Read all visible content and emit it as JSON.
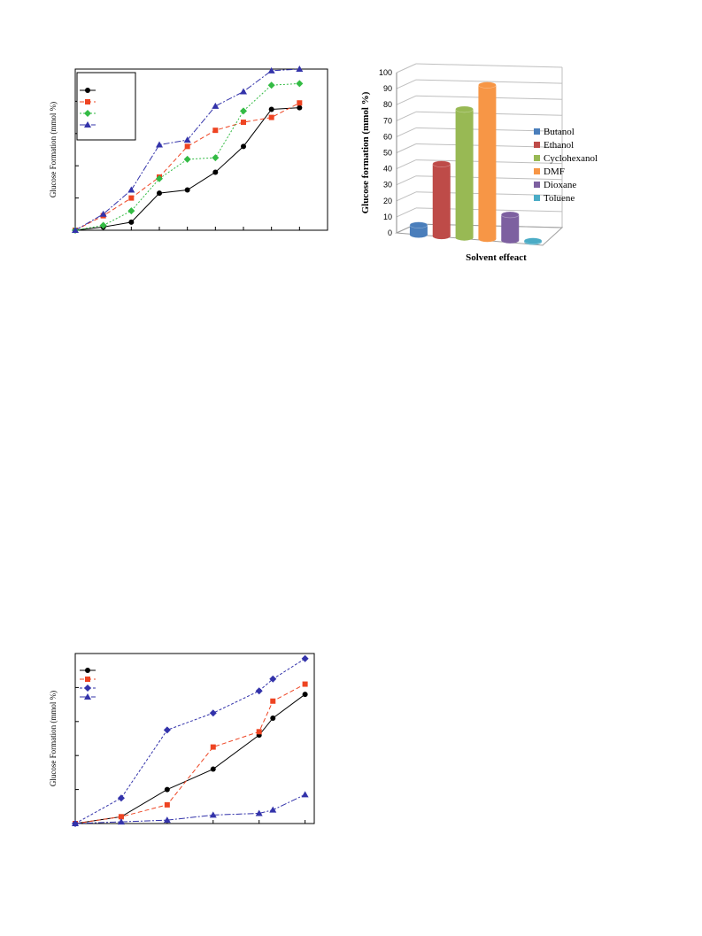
{
  "chart_data": [
    {
      "type": "line",
      "ylabel": "Glucose Formation (mmol %)",
      "xlabel": "",
      "x": [
        0,
        1,
        2,
        3,
        4,
        5,
        6,
        7,
        8
      ],
      "xlim": [
        0,
        9
      ],
      "ylim": [
        0,
        100
      ],
      "grid": false,
      "legend_position": "top-left",
      "series": [
        {
          "values": [
            0,
            2,
            5,
            23,
            25,
            36,
            52,
            75,
            76
          ],
          "color": "#000000",
          "marker": "circle",
          "dash": "none"
        },
        {
          "values": [
            0,
            9,
            20,
            33,
            52,
            62,
            67,
            70,
            79
          ],
          "color": "#ee4422",
          "marker": "square",
          "dash": "5,3"
        },
        {
          "values": [
            0,
            3,
            12,
            32,
            44,
            45,
            74,
            90,
            91
          ],
          "color": "#33bb44",
          "marker": "diamond",
          "dash": "2,2"
        },
        {
          "values": [
            0,
            10,
            25,
            53,
            56,
            77,
            86,
            99,
            100
          ],
          "color": "#3333aa",
          "marker": "triangle",
          "dash": "7,2,2,2"
        }
      ]
    },
    {
      "type": "bar",
      "ylabel": "Glucose formation (mmol %)",
      "xlabel": "Solvent effeact",
      "categories": [
        "Butanol",
        "Ethanol",
        "Cyclohexanol",
        "DMF",
        "Dioxane",
        "Toluene"
      ],
      "values": [
        6,
        45,
        80,
        96,
        16,
        0.5
      ],
      "colors": [
        "#4a7ebb",
        "#be4b48",
        "#98b954",
        "#f79646",
        "#7d60a0",
        "#4bacc6"
      ],
      "ylim": [
        0,
        100
      ],
      "yticks": [
        "0",
        "10",
        "20",
        "30",
        "40",
        "50",
        "60",
        "70",
        "80",
        "90",
        "100"
      ],
      "grid": true,
      "legend_position": "right"
    },
    {
      "type": "line",
      "ylabel": "Glucose Formation (mmol %)",
      "xlabel": "",
      "x": [
        0,
        1,
        2,
        3,
        4,
        4.3,
        5
      ],
      "xlim": [
        0,
        5.2
      ],
      "ylim": [
        0,
        100
      ],
      "grid": false,
      "legend_position": "top-left",
      "series": [
        {
          "values": [
            0,
            4,
            20,
            32,
            52,
            62,
            76
          ],
          "color": "#000000",
          "marker": "circle",
          "dash": "none",
          "xi": [
            0,
            1,
            2,
            3,
            4,
            4.3,
            5
          ]
        },
        {
          "values": [
            0,
            4,
            11,
            45,
            54,
            72,
            82
          ],
          "color": "#ee4422",
          "marker": "square",
          "dash": "5,3",
          "xi": [
            0,
            1,
            2,
            3,
            4,
            4.3,
            5
          ]
        },
        {
          "values": [
            0,
            15,
            55,
            65,
            78,
            85,
            97
          ],
          "color": "#3333aa",
          "marker": "diamond",
          "dash": "3,2",
          "xi": [
            0,
            1,
            2,
            3,
            4,
            4.3,
            5
          ]
        },
        {
          "values": [
            0,
            1,
            2,
            5,
            6,
            8,
            17
          ],
          "color": "#3333aa",
          "marker": "triangle",
          "dash": "7,2,2,2",
          "xi": [
            0,
            1,
            2,
            3,
            4,
            4.3,
            5
          ]
        }
      ]
    }
  ]
}
